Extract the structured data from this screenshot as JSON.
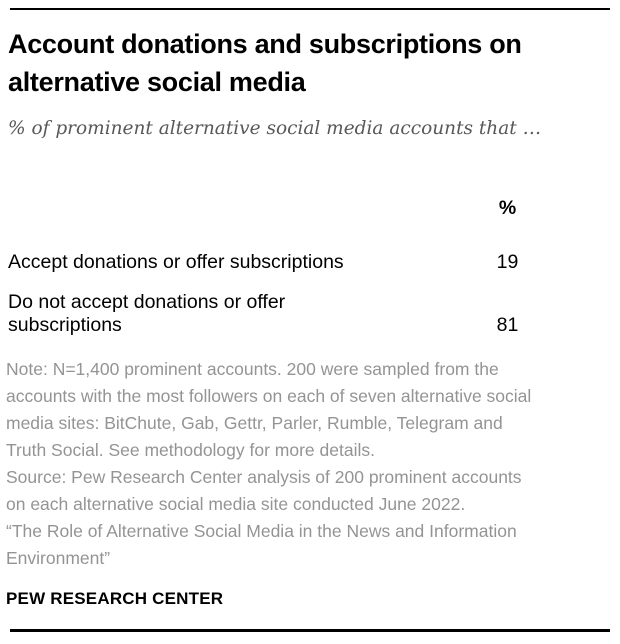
{
  "header": {
    "title_line1": "Account donations and subscriptions on",
    "title_line2": "alternative social media",
    "subtitle": "% of prominent alternative social media accounts that …"
  },
  "table": {
    "value_header": "%",
    "rows": [
      {
        "label_line1": "Accept donations or offer subscriptions",
        "label_line2": "",
        "value": "19"
      },
      {
        "label_line1": "Do not accept donations or offer",
        "label_line2": "subscriptions",
        "value": "81"
      }
    ]
  },
  "chart_data": {
    "type": "table",
    "title": "Account donations and subscriptions on alternative social media",
    "subtitle": "% of prominent alternative social media accounts that …",
    "columns": [
      "",
      "%"
    ],
    "categories": [
      "Accept donations or offer subscriptions",
      "Do not accept donations or offer subscriptions"
    ],
    "values": [
      19,
      81
    ]
  },
  "notes": {
    "note_lines": [
      "Note: N=1,400 prominent accounts. 200 were sampled from the",
      "accounts with the most followers on each of seven alternative social",
      "media sites: BitChute, Gab, Gettr, Parler, Rumble, Telegram and",
      "Truth Social. See methodology for more details."
    ],
    "source_lines": [
      "Source: Pew Research Center analysis of 200 prominent accounts",
      "on each alternative social media site conducted June 2022."
    ],
    "quote_lines": [
      "“The Role of Alternative Social Media in the News and Information",
      "Environment”"
    ]
  },
  "footer": {
    "brand": "PEW RESEARCH CENTER"
  },
  "colors": {
    "title": "#000000",
    "subtitle": "#58585a",
    "notes": "#949494",
    "rule": "#000000",
    "background": "#ffffff"
  }
}
